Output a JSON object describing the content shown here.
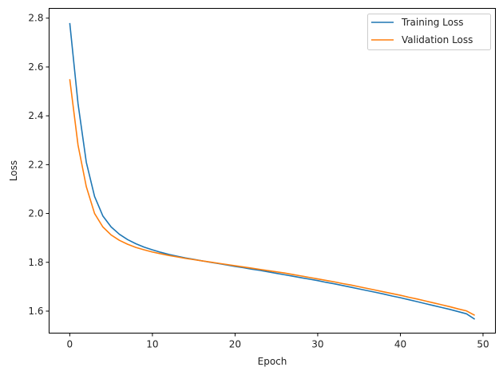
{
  "chart_data": {
    "type": "line",
    "title": "",
    "xlabel": "Epoch",
    "ylabel": "Loss",
    "xlim": [
      -2.5,
      51.5
    ],
    "ylim": [
      1.51,
      2.84
    ],
    "xticks": [
      0,
      10,
      20,
      30,
      40,
      50
    ],
    "yticks": [
      1.6,
      1.8,
      2.0,
      2.2,
      2.4,
      2.6,
      2.8
    ],
    "xtick_labels": [
      "0",
      "10",
      "20",
      "30",
      "40",
      "50"
    ],
    "ytick_labels": [
      "1.6",
      "1.8",
      "2.0",
      "2.2",
      "2.4",
      "2.6",
      "2.8"
    ],
    "grid": false,
    "legend_position": "upper right",
    "x": [
      0,
      1,
      2,
      3,
      4,
      5,
      6,
      7,
      8,
      9,
      10,
      11,
      12,
      13,
      14,
      15,
      16,
      17,
      18,
      19,
      20,
      21,
      22,
      23,
      24,
      25,
      26,
      27,
      28,
      29,
      30,
      31,
      32,
      33,
      34,
      35,
      36,
      37,
      38,
      39,
      40,
      41,
      42,
      43,
      44,
      45,
      46,
      47,
      48,
      49
    ],
    "series": [
      {
        "name": "Training Loss",
        "color": "#1f77b4",
        "values": [
          2.78,
          2.45,
          2.21,
          2.07,
          1.99,
          1.945,
          1.915,
          1.893,
          1.876,
          1.862,
          1.851,
          1.841,
          1.832,
          1.825,
          1.818,
          1.812,
          1.806,
          1.8,
          1.795,
          1.789,
          1.783,
          1.778,
          1.772,
          1.767,
          1.761,
          1.755,
          1.749,
          1.743,
          1.737,
          1.731,
          1.725,
          1.718,
          1.712,
          1.705,
          1.698,
          1.691,
          1.684,
          1.677,
          1.67,
          1.662,
          1.655,
          1.647,
          1.639,
          1.631,
          1.623,
          1.615,
          1.607,
          1.598,
          1.589,
          1.567
        ]
      },
      {
        "name": "Validation Loss",
        "color": "#ff7f0e",
        "values": [
          2.55,
          2.28,
          2.11,
          2.0,
          1.945,
          1.912,
          1.89,
          1.874,
          1.861,
          1.851,
          1.842,
          1.835,
          1.828,
          1.822,
          1.816,
          1.811,
          1.806,
          1.801,
          1.796,
          1.791,
          1.786,
          1.781,
          1.776,
          1.771,
          1.766,
          1.761,
          1.756,
          1.75,
          1.744,
          1.738,
          1.732,
          1.726,
          1.72,
          1.713,
          1.707,
          1.7,
          1.693,
          1.686,
          1.679,
          1.672,
          1.665,
          1.657,
          1.65,
          1.642,
          1.634,
          1.626,
          1.618,
          1.609,
          1.601,
          1.583
        ]
      }
    ]
  },
  "legend": {
    "items": [
      {
        "label": "Training Loss",
        "color": "#1f77b4"
      },
      {
        "label": "Validation Loss",
        "color": "#ff7f0e"
      }
    ]
  },
  "axes": {
    "xlabel": "Epoch",
    "ylabel": "Loss"
  }
}
